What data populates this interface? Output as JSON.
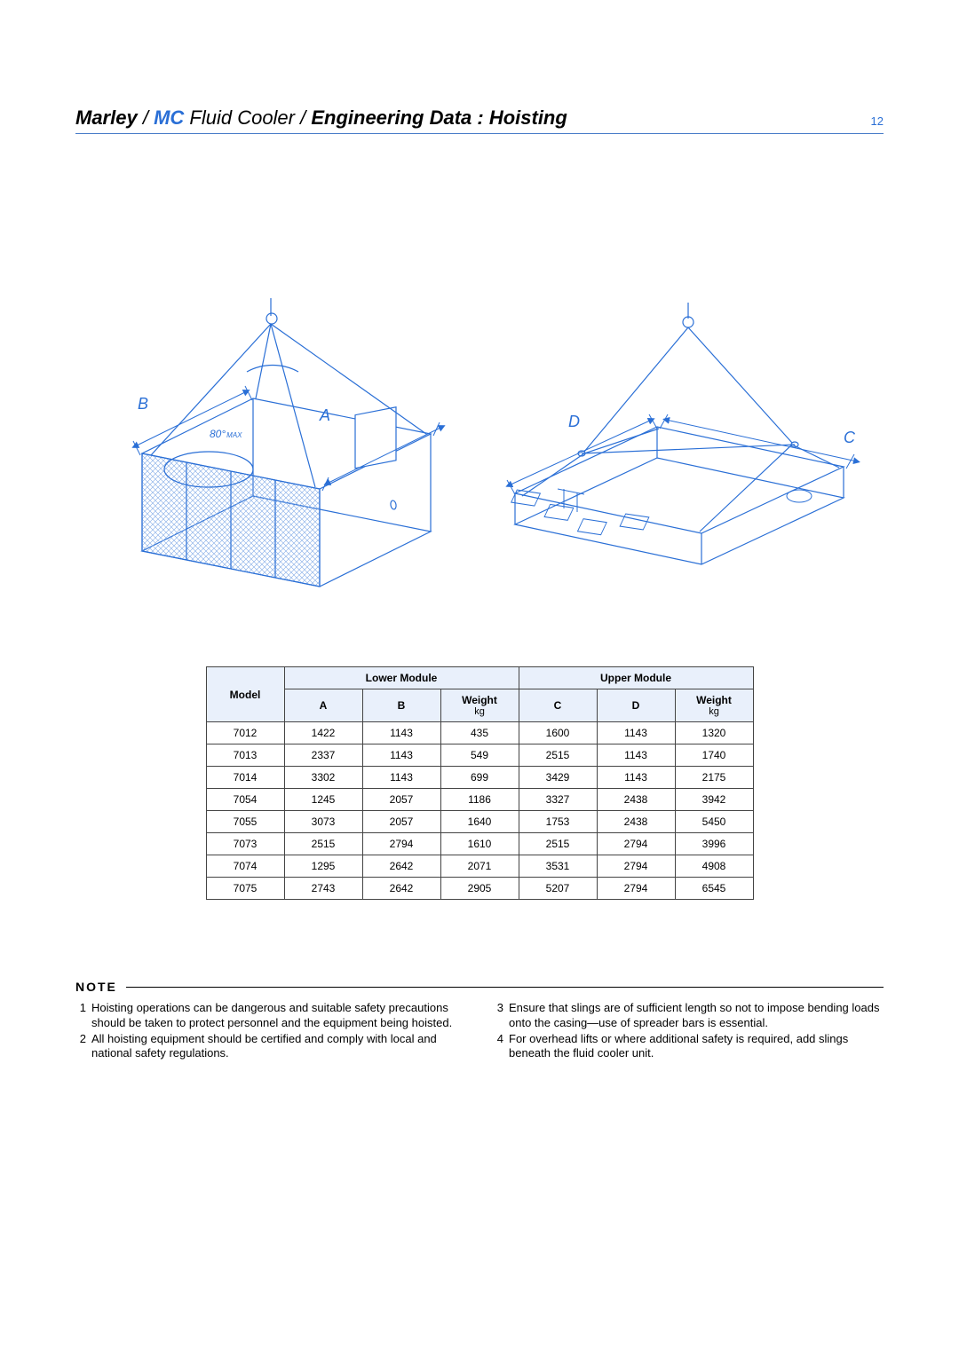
{
  "page_number": "12",
  "header": {
    "brand": "Marley",
    "sep1": " / ",
    "mc": "MC",
    "fluid": " Fluid Cooler",
    "sep2": " / ",
    "engdata": "Engineering Data : Hoisting"
  },
  "diagrams": {
    "left": {
      "label_A": "A",
      "label_B": "B",
      "angle": "80°",
      "angle_suffix": "MAX"
    },
    "right": {
      "label_C": "C",
      "label_D": "D"
    },
    "stroke_color": "#2a6fd6",
    "stroke_width": 1.1,
    "hatch_color": "#7fa9e6"
  },
  "table": {
    "head": {
      "model": "Model",
      "lower": "Lower Module",
      "upper": "Upper Module",
      "A": "A",
      "B": "B",
      "C": "C",
      "D": "D",
      "weight": "Weight",
      "kg": "kg"
    },
    "rows": [
      {
        "model": "7012",
        "A": "1422",
        "B": "1143",
        "W1": "435",
        "C": "1600",
        "D": "1143",
        "W2": "1320"
      },
      {
        "model": "7013",
        "A": "2337",
        "B": "1143",
        "W1": "549",
        "C": "2515",
        "D": "1143",
        "W2": "1740"
      },
      {
        "model": "7014",
        "A": "3302",
        "B": "1143",
        "W1": "699",
        "C": "3429",
        "D": "1143",
        "W2": "2175"
      },
      {
        "model": "7054",
        "A": "1245",
        "B": "2057",
        "W1": "1186",
        "C": "3327",
        "D": "2438",
        "W2": "3942"
      },
      {
        "model": "7055",
        "A": "3073",
        "B": "2057",
        "W1": "1640",
        "C": "1753",
        "D": "2438",
        "W2": "5450"
      },
      {
        "model": "7073",
        "A": "2515",
        "B": "2794",
        "W1": "1610",
        "C": "2515",
        "D": "2794",
        "W2": "3996"
      },
      {
        "model": "7074",
        "A": "1295",
        "B": "2642",
        "W1": "2071",
        "C": "3531",
        "D": "2794",
        "W2": "4908"
      },
      {
        "model": "7075",
        "A": "2743",
        "B": "2642",
        "W1": "2905",
        "C": "5207",
        "D": "2794",
        "W2": "6545"
      }
    ]
  },
  "notes": {
    "heading": "NOTE",
    "left": [
      {
        "n": "1",
        "t": "Hoisting operations can be dangerous and suitable safety precautions should be taken to protect personnel and the equipment being hoisted."
      },
      {
        "n": "2",
        "t": "All hoisting equipment should be certified and comply with local and national safety regulations."
      }
    ],
    "right": [
      {
        "n": "3",
        "t": "Ensure that slings are of sufficient length so not to impose bending loads onto the casing—use of spreader bars is essential."
      },
      {
        "n": "4",
        "t": "For overhead lifts or where additional safety is required, add slings beneath the fluid cooler unit."
      }
    ]
  },
  "colors": {
    "accent": "#2a6fd6",
    "rule": "#4a7dc9",
    "table_head_bg": "#e9f0fb",
    "border": "#444444",
    "text": "#000000"
  },
  "fonts": {
    "header_size_pt": 22,
    "table_size_pt": 12,
    "note_size_pt": 13
  }
}
